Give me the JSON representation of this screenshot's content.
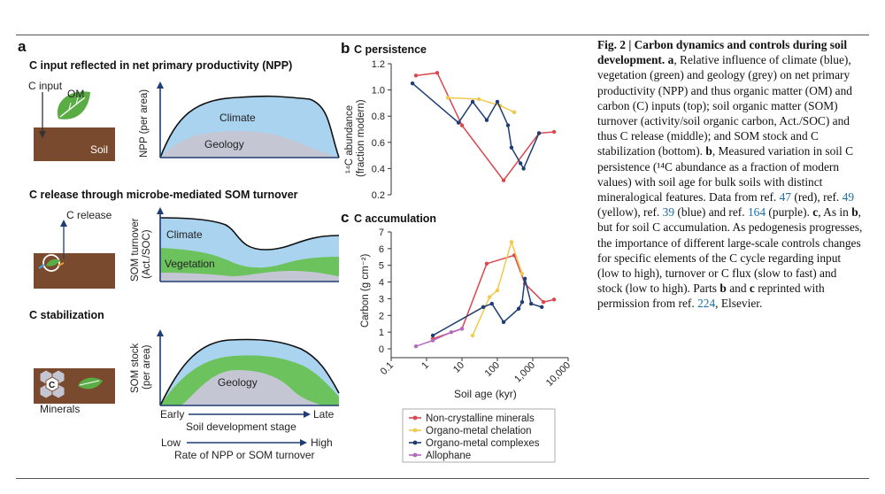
{
  "panel_a": {
    "letter": "a",
    "input": {
      "title": "C input reflected in net primary productivity (NPP)",
      "c_input_label": "C input",
      "om_label": "OM",
      "soil_label": "Soil",
      "ylabel": "NPP (per area)",
      "layer_top": "Climate",
      "layer_bottom": "Geology"
    },
    "release": {
      "title": "C release through microbe-mediated SOM turnover",
      "c_release_label": "C release",
      "ylabel_1": "SOM turnover",
      "ylabel_2": "(Act./SOC)",
      "layer_top": "Climate",
      "layer_bottom": "Vegetation"
    },
    "stabilization": {
      "title": "C stabilization",
      "c_glyph": "C",
      "minerals_label": "Minerals",
      "ylabel_1": "SOM stock",
      "ylabel_2": "(per area)",
      "layer_inner": "Geology"
    },
    "axis1": {
      "start": "Early",
      "end": "Late",
      "label": "Soil development stage"
    },
    "axis2": {
      "start": "Low",
      "end": "High",
      "label": "Rate of NPP or SOM turnover"
    }
  },
  "panel_b": {
    "letter": "b",
    "title": "C persistence",
    "ylabel_1": "¹⁴C abundance",
    "ylabel_2": "(fraction modern)",
    "yticks": [
      "1.2",
      "1.0",
      "0.8",
      "0.6",
      "0.4",
      "0.2"
    ]
  },
  "panel_c": {
    "letter": "c",
    "title": "C accumulation",
    "ylabel": "Carbon (g cm⁻²)",
    "yticks": [
      "7",
      "6",
      "5",
      "4",
      "3",
      "2",
      "1",
      "0"
    ],
    "xticks": [
      "0.1",
      "1",
      "10",
      "100",
      "1,000",
      "10,000"
    ],
    "xlabel": "Soil age (kyr)"
  },
  "legend": [
    {
      "label": "Non-crystalline minerals",
      "color": "#d9474f"
    },
    {
      "label": "Organo-metal chelation",
      "color": "#f2c94c"
    },
    {
      "label": "Organo-metal complexes",
      "color": "#1f3d73"
    },
    {
      "label": "Allophane",
      "color": "#b36ac0"
    }
  ],
  "caption": {
    "fig": "Fig. 2 | Carbon dynamics and controls during soil development.",
    "a_letter": "a",
    "t1": ", Relative influence of climate (blue), vegetation (green) and geology (grey) on net primary productivity (NPP) and thus organic matter (OM) and carbon (C) inputs (top); soil organic matter (SOM) turnover (activity/soil organic carbon, Act./SOC) and thus C release (middle); and SOM stock and C stabilization (bottom).",
    "b_letter": "b",
    "t2": ", Measured variation in soil C persistence (¹⁴C abundance as a fraction of modern values) with soil age for bulk soils with distinct mineralogical features. Data from ref.",
    "r1": "47",
    "t3": "(red), ref.",
    "r2": "49",
    "t4": "(yellow), ref.",
    "r3": "39",
    "t5": "(blue) and ref.",
    "r4": "164",
    "t6": "(purple).",
    "c_letter": "c",
    "t7": ", As in",
    "b_letter2": "b",
    "t8": ", but for soil C accumulation. As pedogenesis progresses, the importance of different large-scale controls changes for specific elements of the C cycle regarding input (low to high), turnover or C flux (slow to fast) and stock (low to high). Parts",
    "b_letter3": "b",
    "t9": "and",
    "c_letter2": "c",
    "t10": "reprinted with permission from ref.",
    "r5": "224",
    "t11": ", Elsevier."
  },
  "chart_data": [
    {
      "type": "line",
      "title": "C persistence",
      "xlabel": "Soil age (kyr)",
      "ylabel": "14C abundance (fraction modern)",
      "xscale": "log",
      "xlim": [
        0.1,
        10000
      ],
      "ylim": [
        0.2,
        1.2
      ],
      "series": [
        {
          "name": "Non-crystalline minerals",
          "color": "#d9474f",
          "x": [
            0.5,
            2,
            10,
            150,
            1500,
            4000
          ],
          "y": [
            1.11,
            1.13,
            0.73,
            0.31,
            0.67,
            0.68
          ]
        },
        {
          "name": "Organo-metal chelation",
          "color": "#f2c94c",
          "x": [
            4,
            30,
            120,
            300
          ],
          "y": [
            0.94,
            0.93,
            0.88,
            0.83
          ]
        },
        {
          "name": "Organo-metal complexes",
          "color": "#1f3d73",
          "x": [
            0.4,
            8,
            20,
            50,
            100,
            200,
            250,
            450,
            550,
            1500
          ],
          "y": [
            1.05,
            0.75,
            0.91,
            0.77,
            0.91,
            0.73,
            0.56,
            0.44,
            0.4,
            0.67
          ]
        },
        {
          "name": "Allophane",
          "color": "#b36ac0",
          "x": [],
          "y": []
        }
      ]
    },
    {
      "type": "line",
      "title": "C accumulation",
      "xlabel": "Soil age (kyr)",
      "ylabel": "Carbon (g cm-2)",
      "xscale": "log",
      "xlim": [
        0.1,
        10000
      ],
      "ylim": [
        0,
        7
      ],
      "series": [
        {
          "name": "Non-crystalline minerals",
          "color": "#d9474f",
          "x": [
            1.5,
            10,
            50,
            300,
            600,
            2000,
            4000
          ],
          "y": [
            0.6,
            1.2,
            5.1,
            5.6,
            3.9,
            2.8,
            2.95
          ]
        },
        {
          "name": "Organo-metal chelation",
          "color": "#f2c94c",
          "x": [
            20,
            60,
            100,
            250,
            500
          ],
          "y": [
            0.8,
            3.1,
            3.5,
            6.4,
            4.5
          ]
        },
        {
          "name": "Organo-metal complexes",
          "color": "#1f3d73",
          "x": [
            1.5,
            40,
            70,
            150,
            400,
            500,
            600,
            900,
            1800
          ],
          "y": [
            0.8,
            2.5,
            2.7,
            1.6,
            2.4,
            2.8,
            4.2,
            2.7,
            2.5
          ]
        },
        {
          "name": "Allophane",
          "color": "#b36ac0",
          "x": [
            0.5,
            1.5,
            5,
            10
          ],
          "y": [
            0.15,
            0.5,
            1.0,
            1.2
          ]
        }
      ]
    }
  ]
}
